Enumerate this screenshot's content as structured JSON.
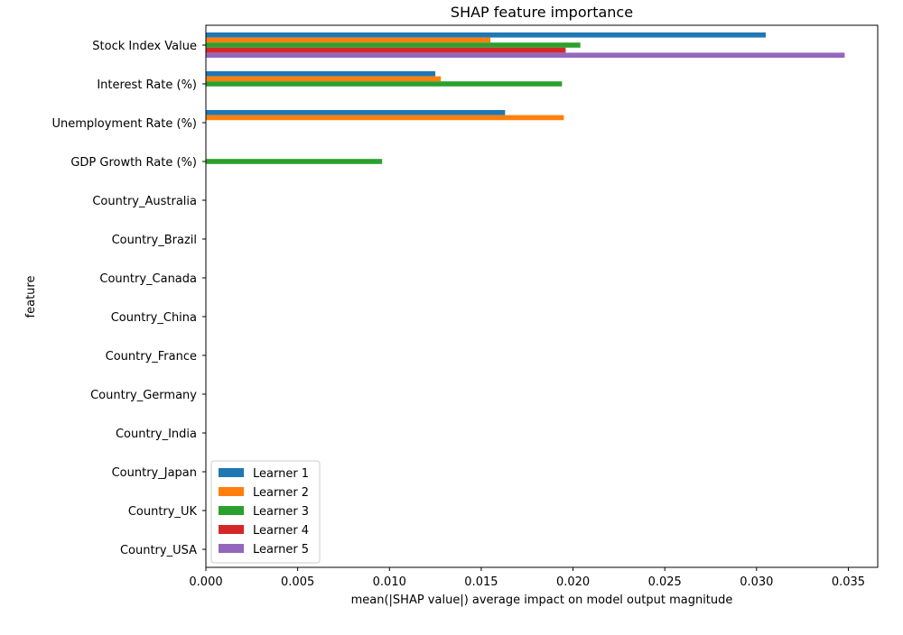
{
  "chart_data": {
    "type": "bar",
    "orientation": "horizontal",
    "title": "SHAP feature importance",
    "xlabel": "mean(|SHAP value|) average impact on model output magnitude",
    "ylabel": "feature",
    "xlim": [
      0,
      0.0366
    ],
    "xticks": [
      "0.000",
      "0.005",
      "0.010",
      "0.015",
      "0.020",
      "0.025",
      "0.030",
      "0.035"
    ],
    "xtick_values": [
      0,
      0.005,
      0.01,
      0.015,
      0.02,
      0.025,
      0.03,
      0.035
    ],
    "grid": false,
    "legend_position": "lower-left",
    "categories": [
      "Stock Index Value",
      "Interest Rate (%)",
      "Unemployment Rate (%)",
      "GDP Growth Rate (%)",
      "Country_Australia",
      "Country_Brazil",
      "Country_Canada",
      "Country_China",
      "Country_France",
      "Country_Germany",
      "Country_India",
      "Country_Japan",
      "Country_UK",
      "Country_USA"
    ],
    "series": [
      {
        "name": "Learner 1",
        "color": "#1f77b4",
        "values": [
          0.0305,
          0.0125,
          0.0163,
          0,
          0,
          0,
          0,
          0,
          0,
          0,
          0,
          0,
          0,
          0
        ]
      },
      {
        "name": "Learner 2",
        "color": "#ff7f0e",
        "values": [
          0.0155,
          0.0128,
          0.0195,
          0,
          0,
          0,
          0,
          0,
          0,
          0,
          0,
          0,
          0,
          0
        ]
      },
      {
        "name": "Learner 3",
        "color": "#2ca02c",
        "values": [
          0.0204,
          0.0194,
          0,
          0.0096,
          0,
          0,
          0,
          0,
          0,
          0,
          0,
          0,
          0,
          0
        ]
      },
      {
        "name": "Learner 4",
        "color": "#d62728",
        "values": [
          0.0196,
          0,
          0,
          0,
          0,
          0,
          0,
          0,
          0,
          0,
          0,
          0,
          0,
          0
        ]
      },
      {
        "name": "Learner 5",
        "color": "#9467bd",
        "values": [
          0.0348,
          0,
          0,
          0,
          0,
          0,
          0,
          0,
          0,
          0,
          0,
          0,
          0,
          0
        ]
      }
    ]
  }
}
